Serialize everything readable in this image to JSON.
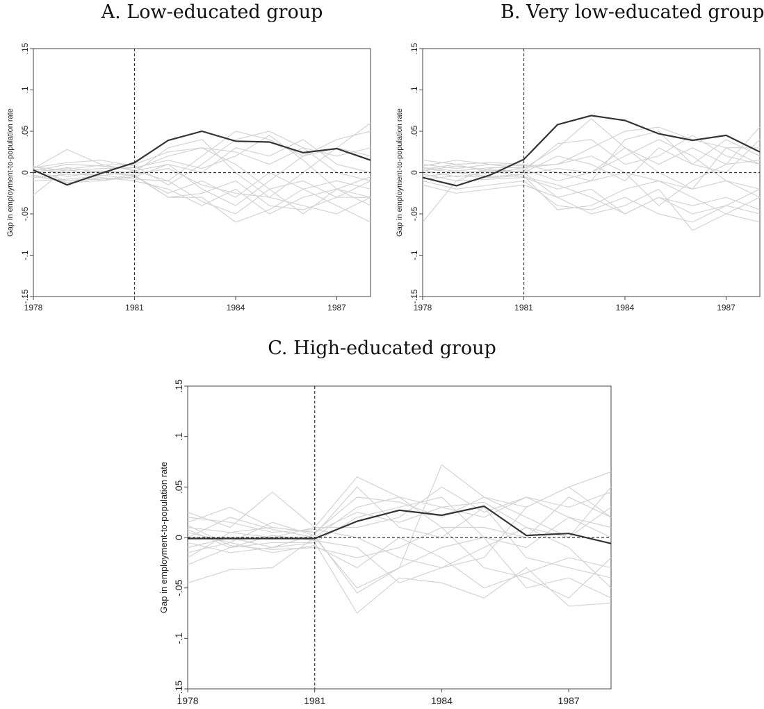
{
  "chart_data": [
    {
      "type": "line",
      "title": "A.   Low-educated group",
      "ylabel": "Gap in employment-to-population rate",
      "xlabel": "",
      "x": [
        1978,
        1979,
        1980,
        1981,
        1982,
        1983,
        1984,
        1985,
        1986,
        1987,
        1988
      ],
      "xlim": [
        1978,
        1988
      ],
      "xticks": [
        1978,
        1981,
        1984,
        1987
      ],
      "xtick_labels": [
        "1978",
        "1981",
        "1984",
        "1987"
      ],
      "ylim": [
        -0.15,
        0.15
      ],
      "yticks": [
        -0.15,
        -0.1,
        -0.05,
        0,
        0.05,
        0.1,
        0.15
      ],
      "ytick_labels": [
        "-.15",
        "-.1",
        "-.05",
        "0",
        ".05",
        ".1",
        ".15"
      ],
      "reference_lines": {
        "x": 1981,
        "y": 0
      },
      "grid": false,
      "legend": "none",
      "treated_color": "#333333",
      "placebo_color": "#d3d3d3",
      "treated": {
        "values": [
          0.003,
          -0.015,
          -0.001,
          0.012,
          0.039,
          0.05,
          0.038,
          0.037,
          0.024,
          0.029,
          0.015
        ]
      },
      "placebos": [
        [
          0.005,
          0.028,
          0.01,
          0.002,
          -0.01,
          0.02,
          0.05,
          0.04,
          0.02,
          0.03,
          0.06
        ],
        [
          -0.027,
          0.005,
          -0.01,
          -0.005,
          0.01,
          -0.02,
          -0.04,
          -0.01,
          0.02,
          0.04,
          0.05
        ],
        [
          0.008,
          -0.005,
          0.002,
          -0.003,
          -0.03,
          -0.03,
          -0.06,
          -0.045,
          -0.02,
          -0.04,
          -0.06
        ],
        [
          0.002,
          0.01,
          0.008,
          0.004,
          0.02,
          0.03,
          0.01,
          -0.02,
          -0.05,
          -0.02,
          -0.03
        ],
        [
          0.006,
          0.012,
          0.015,
          0.008,
          -0.015,
          0.01,
          0.04,
          0.05,
          0.03,
          0.0,
          -0.01
        ],
        [
          -0.005,
          -0.01,
          -0.006,
          -0.01,
          -0.02,
          -0.04,
          -0.02,
          -0.05,
          -0.03,
          -0.02,
          -0.04
        ],
        [
          0.004,
          0.0,
          0.002,
          0.0,
          0.03,
          0.04,
          0.0,
          -0.03,
          0.0,
          0.03,
          0.02
        ],
        [
          0.003,
          -0.01,
          -0.008,
          -0.005,
          -0.025,
          -0.01,
          -0.03,
          0.0,
          -0.02,
          -0.01,
          -0.02
        ],
        [
          -0.01,
          -0.008,
          -0.004,
          0.002,
          0.01,
          0.0,
          0.03,
          0.02,
          0.04,
          0.01,
          0.0
        ],
        [
          0.0,
          0.006,
          0.0,
          -0.004,
          -0.03,
          -0.025,
          -0.01,
          -0.04,
          -0.045,
          -0.03,
          -0.01
        ],
        [
          0.007,
          0.002,
          0.005,
          0.006,
          0.015,
          0.005,
          0.02,
          0.045,
          0.015,
          -0.02,
          -0.005
        ],
        [
          -0.006,
          -0.002,
          -0.003,
          -0.008,
          -0.01,
          -0.035,
          -0.05,
          -0.02,
          -0.01,
          -0.03,
          -0.03
        ],
        [
          0.001,
          0.004,
          0.009,
          0.01,
          0.025,
          0.03,
          0.025,
          0.01,
          0.03,
          0.02,
          0.03
        ],
        [
          -0.003,
          -0.012,
          -0.01,
          -0.002,
          0.005,
          -0.015,
          -0.025,
          -0.03,
          -0.04,
          -0.05,
          -0.03
        ]
      ]
    },
    {
      "type": "line",
      "title": "B. Very low-educated group",
      "ylabel": "Gap in employment-to-population rate",
      "xlabel": "",
      "x": [
        1978,
        1979,
        1980,
        1981,
        1982,
        1983,
        1984,
        1985,
        1986,
        1987,
        1988
      ],
      "xlim": [
        1978,
        1988
      ],
      "xticks": [
        1978,
        1981,
        1984,
        1987
      ],
      "xtick_labels": [
        "1978",
        "1981",
        "1984",
        "1987"
      ],
      "ylim": [
        -0.15,
        0.15
      ],
      "yticks": [
        -0.15,
        -0.1,
        -0.05,
        0,
        0.05,
        0.1,
        0.15
      ],
      "ytick_labels": [
        "-.15",
        "-.1",
        "-.05",
        "0",
        ".05",
        ".1",
        ".15"
      ],
      "reference_lines": {
        "x": 1981,
        "y": 0
      },
      "grid": false,
      "legend": "none",
      "treated_color": "#333333",
      "placebo_color": "#d3d3d3",
      "treated": {
        "values": [
          -0.006,
          -0.016,
          -0.003,
          0.016,
          0.058,
          0.069,
          0.063,
          0.047,
          0.039,
          0.045,
          0.025
        ]
      },
      "placebos": [
        [
          -0.06,
          -0.01,
          0.005,
          0.0,
          -0.03,
          -0.02,
          -0.05,
          -0.03,
          -0.05,
          -0.04,
          -0.02
        ],
        [
          0.015,
          0.01,
          0.0,
          0.005,
          0.03,
          0.065,
          0.03,
          0.01,
          0.03,
          0.01,
          0.055
        ],
        [
          0.01,
          0.005,
          0.01,
          0.008,
          0.01,
          0.03,
          0.05,
          0.055,
          0.04,
          0.03,
          0.03
        ],
        [
          -0.01,
          -0.02,
          -0.015,
          -0.01,
          -0.04,
          -0.045,
          -0.03,
          -0.05,
          -0.06,
          -0.04,
          -0.05
        ],
        [
          0.005,
          0.0,
          -0.005,
          -0.002,
          0.005,
          0.0,
          0.03,
          0.0,
          -0.02,
          0.03,
          0.01
        ],
        [
          -0.015,
          -0.025,
          -0.02,
          -0.015,
          -0.03,
          -0.05,
          -0.04,
          -0.02,
          -0.07,
          -0.05,
          -0.06
        ],
        [
          0.002,
          0.008,
          0.003,
          0.0,
          0.02,
          0.01,
          -0.01,
          0.03,
          0.01,
          0.04,
          0.02
        ],
        [
          0.008,
          0.015,
          0.01,
          0.004,
          -0.01,
          0.0,
          0.02,
          0.04,
          0.02,
          -0.01,
          -0.03
        ],
        [
          -0.005,
          0.0,
          0.002,
          -0.005,
          -0.015,
          -0.03,
          -0.05,
          -0.03,
          -0.04,
          -0.03,
          -0.045
        ],
        [
          0.003,
          -0.005,
          0.0,
          0.002,
          0.035,
          0.04,
          0.01,
          0.02,
          0.045,
          0.02,
          0.01
        ],
        [
          -0.002,
          -0.01,
          -0.008,
          -0.006,
          -0.02,
          -0.01,
          0.0,
          -0.01,
          -0.02,
          -0.01,
          -0.02
        ],
        [
          0.006,
          0.002,
          0.006,
          0.006,
          0.01,
          0.02,
          0.0,
          -0.04,
          -0.01,
          0.01,
          0.015
        ],
        [
          -0.008,
          -0.004,
          -0.006,
          -0.004,
          -0.045,
          -0.04,
          -0.02,
          -0.01,
          -0.03,
          -0.05,
          -0.03
        ],
        [
          0.004,
          0.01,
          0.012,
          0.01,
          0.0,
          -0.01,
          0.04,
          0.05,
          0.01,
          0.0,
          0.04
        ]
      ]
    },
    {
      "type": "line",
      "title": "C. High-educated group",
      "ylabel": "Gap in employment-to-population rate",
      "xlabel": "",
      "x": [
        1978,
        1979,
        1980,
        1981,
        1982,
        1983,
        1984,
        1985,
        1986,
        1987,
        1988
      ],
      "xlim": [
        1978,
        1988
      ],
      "xticks": [
        1978,
        1981,
        1984,
        1987
      ],
      "xtick_labels": [
        "1978",
        "1981",
        "1984",
        "1987"
      ],
      "ylim": [
        -0.15,
        0.15
      ],
      "yticks": [
        -0.15,
        -0.1,
        -0.05,
        0,
        0.05,
        0.1,
        0.15
      ],
      "ytick_labels": [
        "-.15",
        "-.1",
        "-.05",
        "0",
        ".05",
        ".1",
        ".15"
      ],
      "reference_lines": {
        "x": 1981,
        "y": 0
      },
      "grid": false,
      "legend": "none",
      "treated_color": "#333333",
      "placebo_color": "#d3d3d3",
      "treated": {
        "values": [
          -0.001,
          -0.001,
          -0.001,
          -0.001,
          0.016,
          0.027,
          0.022,
          0.031,
          0.002,
          0.004,
          -0.006
        ]
      },
      "placebos": [
        [
          -0.045,
          -0.032,
          -0.03,
          0.0,
          -0.05,
          -0.03,
          0.072,
          0.04,
          0.03,
          0.05,
          0.065
        ],
        [
          0.025,
          0.01,
          0.045,
          0.01,
          0.06,
          0.04,
          0.03,
          0.02,
          0.04,
          0.03,
          0.045
        ],
        [
          -0.027,
          -0.01,
          -0.005,
          -0.005,
          -0.075,
          -0.04,
          -0.045,
          -0.06,
          -0.03,
          -0.068,
          -0.065
        ],
        [
          0.015,
          0.03,
          0.01,
          0.005,
          0.04,
          0.035,
          0.02,
          0.04,
          0.02,
          0.0,
          0.03
        ],
        [
          0.005,
          -0.005,
          0.015,
          0.002,
          -0.055,
          -0.03,
          -0.01,
          0.0,
          -0.05,
          -0.04,
          -0.06
        ],
        [
          -0.01,
          0.0,
          -0.01,
          -0.005,
          0.02,
          0.03,
          0.04,
          0.0,
          -0.01,
          0.02,
          0.01
        ],
        [
          0.02,
          0.015,
          0.005,
          0.008,
          0.0,
          -0.02,
          -0.03,
          -0.02,
          0.03,
          0.05,
          0.02
        ],
        [
          -0.005,
          -0.015,
          -0.01,
          0.003,
          0.05,
          0.01,
          0.0,
          0.03,
          -0.02,
          -0.03,
          -0.04
        ],
        [
          0.01,
          0.005,
          0.0,
          0.01,
          0.01,
          0.02,
          0.05,
          0.025,
          0.04,
          0.02,
          0.0
        ],
        [
          -0.015,
          -0.005,
          -0.015,
          -0.008,
          -0.03,
          0.0,
          -0.02,
          -0.05,
          -0.035,
          -0.02,
          -0.03
        ],
        [
          0.0,
          0.02,
          0.008,
          0.0,
          0.03,
          0.04,
          0.01,
          0.01,
          0.0,
          0.04,
          0.02
        ],
        [
          0.008,
          -0.01,
          0.002,
          -0.003,
          -0.01,
          -0.045,
          -0.03,
          -0.01,
          0.01,
          -0.01,
          -0.05
        ],
        [
          -0.02,
          0.005,
          0.01,
          0.005,
          0.025,
          0.015,
          0.03,
          0.035,
          0.01,
          0.0,
          0.05
        ],
        [
          0.012,
          -0.008,
          -0.012,
          -0.01,
          -0.02,
          -0.01,
          0.01,
          -0.03,
          -0.04,
          -0.06,
          -0.02
        ]
      ]
    }
  ]
}
